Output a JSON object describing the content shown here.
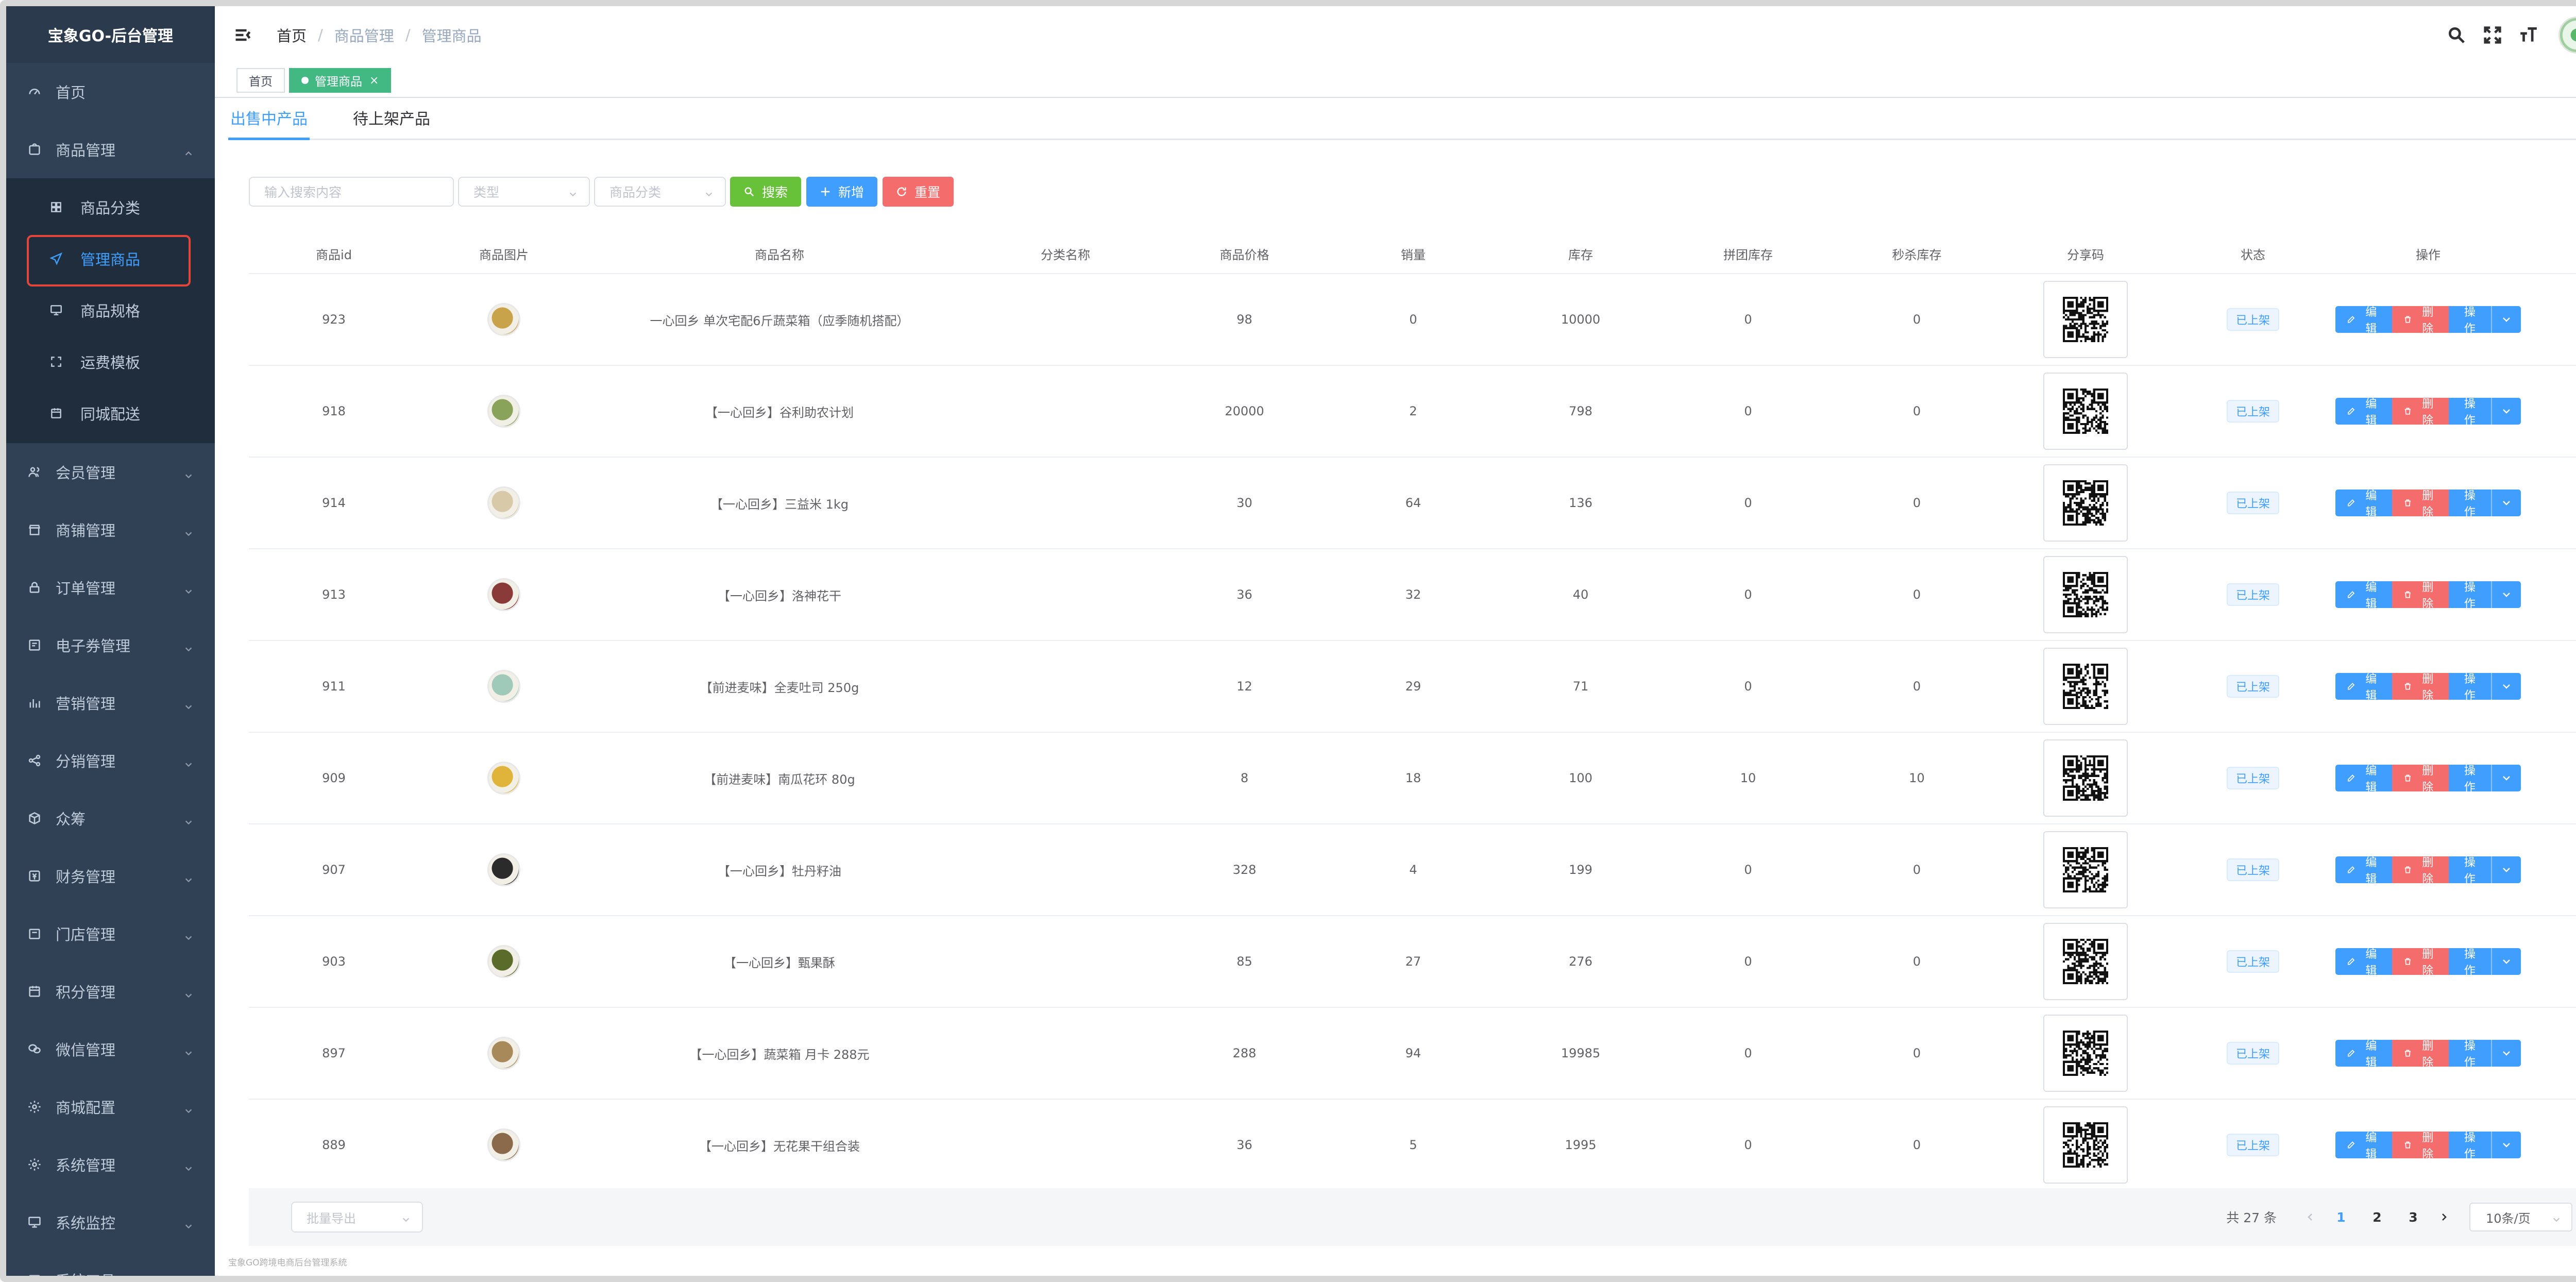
{
  "app": {
    "title": "宝象GO-后台管理"
  },
  "sidebar": {
    "items": [
      {
        "label": "首页",
        "icon": "dashboard-icon"
      },
      {
        "label": "商品管理",
        "icon": "shopping-icon",
        "expanded": true,
        "children": [
          {
            "label": "商品分类",
            "icon": "grid-icon"
          },
          {
            "label": "管理商品",
            "icon": "send-icon",
            "active": true
          },
          {
            "label": "商品规格",
            "icon": "monitor-icon"
          },
          {
            "label": "运费模板",
            "icon": "expand-icon"
          },
          {
            "label": "同城配送",
            "icon": "calendar-icon"
          }
        ]
      },
      {
        "label": "会员管理",
        "icon": "peoples-icon"
      },
      {
        "label": "商铺管理",
        "icon": "shop-icon"
      },
      {
        "label": "订单管理",
        "icon": "lock-icon"
      },
      {
        "label": "电子券管理",
        "icon": "coupon-icon"
      },
      {
        "label": "营销管理",
        "icon": "chart-icon"
      },
      {
        "label": "分销管理",
        "icon": "share-icon"
      },
      {
        "label": "众筹",
        "icon": "box-icon"
      },
      {
        "label": "财务管理",
        "icon": "money-icon"
      },
      {
        "label": "门店管理",
        "icon": "store-icon"
      },
      {
        "label": "积分管理",
        "icon": "date-icon"
      },
      {
        "label": "微信管理",
        "icon": "wechat-icon"
      },
      {
        "label": "商城配置",
        "icon": "settings-icon"
      },
      {
        "label": "系统管理",
        "icon": "system-icon"
      },
      {
        "label": "系统监控",
        "icon": "monitor-icon"
      },
      {
        "label": "系统工具",
        "icon": "tool-icon"
      }
    ]
  },
  "header": {
    "breadcrumb": [
      "首页",
      "商品管理",
      "管理商品"
    ],
    "breadcrumb_sep": "/"
  },
  "tags": [
    {
      "label": "首页",
      "active": false
    },
    {
      "label": "管理商品",
      "active": true,
      "close": "×"
    }
  ],
  "tabs": [
    {
      "label": "出售中产品",
      "active": true
    },
    {
      "label": "待上架产品",
      "active": false
    }
  ],
  "filters": {
    "search_placeholder": "输入搜索内容",
    "type_placeholder": "类型",
    "category_placeholder": "商品分类",
    "search_button": "搜索",
    "add_button": "新增",
    "reset_button": "重置"
  },
  "table": {
    "columns": [
      "商品id",
      "商品图片",
      "商品名称",
      "分类名称",
      "商品价格",
      "销量",
      "库存",
      "拼团库存",
      "秒杀库存",
      "分享码",
      "状态",
      "操作"
    ],
    "rows": [
      {
        "id": "923",
        "name": "一心回乡 单次宅配6斤蔬菜箱（应季随机搭配）",
        "category": "",
        "price": "98",
        "sales": "0",
        "stock": "10000",
        "group_stock": "0",
        "seckill_stock": "0",
        "status": "已上架",
        "thumb_color": "#c9a34a"
      },
      {
        "id": "918",
        "name": "【一心回乡】谷利助农计划",
        "category": "",
        "price": "20000",
        "sales": "2",
        "stock": "798",
        "group_stock": "0",
        "seckill_stock": "0",
        "status": "已上架",
        "thumb_color": "#8aa35a"
      },
      {
        "id": "914",
        "name": "【一心回乡】三益米 1kg",
        "category": "",
        "price": "30",
        "sales": "64",
        "stock": "136",
        "group_stock": "0",
        "seckill_stock": "0",
        "status": "已上架",
        "thumb_color": "#d8c9a8"
      },
      {
        "id": "913",
        "name": "【一心回乡】洛神花干",
        "category": "",
        "price": "36",
        "sales": "32",
        "stock": "40",
        "group_stock": "0",
        "seckill_stock": "0",
        "status": "已上架",
        "thumb_color": "#8b3a3a"
      },
      {
        "id": "911",
        "name": "【前进麦味】全麦吐司 250g",
        "category": "",
        "price": "12",
        "sales": "29",
        "stock": "71",
        "group_stock": "0",
        "seckill_stock": "0",
        "status": "已上架",
        "thumb_color": "#9fc9b9"
      },
      {
        "id": "909",
        "name": "【前进麦味】南瓜花环 80g",
        "category": "",
        "price": "8",
        "sales": "18",
        "stock": "100",
        "group_stock": "10",
        "seckill_stock": "10",
        "status": "已上架",
        "thumb_color": "#e0b43a"
      },
      {
        "id": "907",
        "name": "【一心回乡】牡丹籽油",
        "category": "",
        "price": "328",
        "sales": "4",
        "stock": "199",
        "group_stock": "0",
        "seckill_stock": "0",
        "status": "已上架",
        "thumb_color": "#2b2b2b"
      },
      {
        "id": "903",
        "name": "【一心回乡】甄果酥",
        "category": "",
        "price": "85",
        "sales": "27",
        "stock": "276",
        "group_stock": "0",
        "seckill_stock": "0",
        "status": "已上架",
        "thumb_color": "#5a6b2a"
      },
      {
        "id": "897",
        "name": "【一心回乡】蔬菜箱 月卡 288元",
        "category": "",
        "price": "288",
        "sales": "94",
        "stock": "19985",
        "group_stock": "0",
        "seckill_stock": "0",
        "status": "已上架",
        "thumb_color": "#a88a5a"
      },
      {
        "id": "889",
        "name": "【一心回乡】无花果干组合装",
        "category": "",
        "price": "36",
        "sales": "5",
        "stock": "1995",
        "group_stock": "0",
        "seckill_stock": "0",
        "status": "已上架",
        "thumb_color": "#8a6a4a"
      }
    ],
    "actions": {
      "edit": "编辑",
      "delete": "删除",
      "more": "操作"
    }
  },
  "footer": {
    "bulk_placeholder": "批量导出",
    "total": "共 27 条",
    "pages": [
      "1",
      "2",
      "3"
    ],
    "current_page": "1",
    "page_size": "10条/页",
    "copyright": "宝象GO跨境电商后台管理系统"
  },
  "colors": {
    "sidebar_bg": "#304156",
    "primary": "#409eff",
    "success": "#67c23a",
    "danger": "#f56c6c",
    "tag_active": "#42b983"
  }
}
